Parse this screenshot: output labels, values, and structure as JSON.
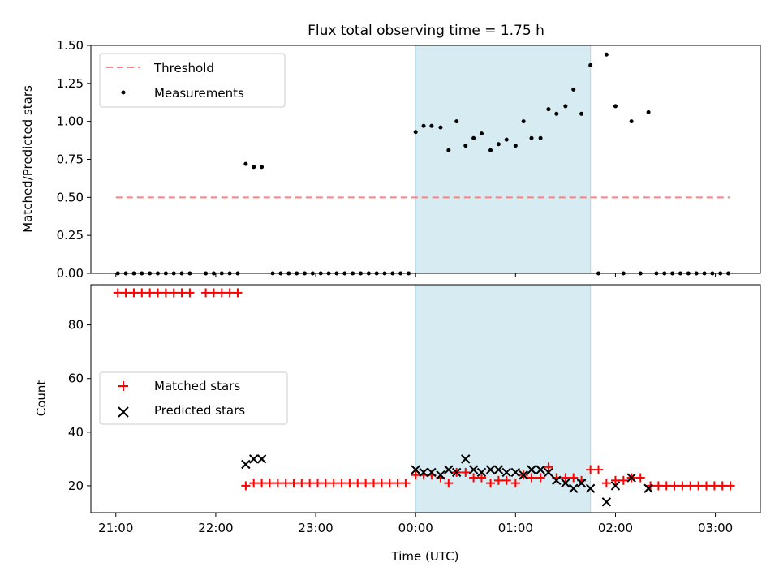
{
  "figure": {
    "title": "Flux total observing time = 1.75 h"
  },
  "chart_data": [
    {
      "type": "scatter",
      "panel": "top",
      "ylabel": "Matched/Predicted stars",
      "ylim": [
        0,
        1.5
      ],
      "yticks": [
        "0.00",
        "0.25",
        "0.50",
        "0.75",
        "1.00",
        "1.25",
        "1.50"
      ],
      "xlim_hours": [
        -3.25,
        3.45
      ],
      "legend_position": "upper-left",
      "legend": [
        "Threshold",
        "Measurements"
      ],
      "shaded_span": {
        "start": 0.0,
        "end": 1.75,
        "color": "#add8e6"
      },
      "threshold": {
        "name": "Threshold",
        "value": 0.5,
        "x_start": -3.0,
        "x_end": 3.15,
        "color": "#ff8080",
        "style": "dashed"
      },
      "series": [
        {
          "name": "Measurements",
          "color": "#000000",
          "marker": "dot",
          "points": [
            [
              -2.98,
              0
            ],
            [
              -2.9,
              0
            ],
            [
              -2.82,
              0
            ],
            [
              -2.74,
              0
            ],
            [
              -2.66,
              0
            ],
            [
              -2.58,
              0
            ],
            [
              -2.5,
              0
            ],
            [
              -2.42,
              0
            ],
            [
              -2.34,
              0
            ],
            [
              -2.26,
              0
            ],
            [
              -2.1,
              0
            ],
            [
              -2.02,
              0
            ],
            [
              -1.94,
              0
            ],
            [
              -1.86,
              0
            ],
            [
              -1.78,
              0
            ],
            [
              -1.7,
              0.72
            ],
            [
              -1.62,
              0.7
            ],
            [
              -1.54,
              0.7
            ],
            [
              -1.43,
              0
            ],
            [
              -1.35,
              0
            ],
            [
              -1.27,
              0
            ],
            [
              -1.19,
              0
            ],
            [
              -1.11,
              0
            ],
            [
              -1.03,
              0
            ],
            [
              -0.95,
              0
            ],
            [
              -0.87,
              0
            ],
            [
              -0.79,
              0
            ],
            [
              -0.71,
              0
            ],
            [
              -0.63,
              0
            ],
            [
              -0.55,
              0
            ],
            [
              -0.47,
              0
            ],
            [
              -0.39,
              0
            ],
            [
              -0.31,
              0
            ],
            [
              -0.23,
              0
            ],
            [
              -0.15,
              0
            ],
            [
              -0.07,
              0
            ],
            [
              0.0,
              0.93
            ],
            [
              0.08,
              0.97
            ],
            [
              0.16,
              0.97
            ],
            [
              0.25,
              0.96
            ],
            [
              0.33,
              0.81
            ],
            [
              0.41,
              1.0
            ],
            [
              0.5,
              0.84
            ],
            [
              0.58,
              0.89
            ],
            [
              0.66,
              0.92
            ],
            [
              0.75,
              0.81
            ],
            [
              0.83,
              0.85
            ],
            [
              0.91,
              0.88
            ],
            [
              1.0,
              0.84
            ],
            [
              1.08,
              1.0
            ],
            [
              1.16,
              0.89
            ],
            [
              1.25,
              0.89
            ],
            [
              1.33,
              1.08
            ],
            [
              1.41,
              1.05
            ],
            [
              1.5,
              1.1
            ],
            [
              1.58,
              1.21
            ],
            [
              1.66,
              1.05
            ],
            [
              1.75,
              1.37
            ],
            [
              1.83,
              0
            ],
            [
              1.91,
              1.44
            ],
            [
              2.0,
              1.1
            ],
            [
              2.08,
              0
            ],
            [
              2.16,
              1.0
            ],
            [
              2.25,
              0
            ],
            [
              2.33,
              1.06
            ],
            [
              2.41,
              0
            ],
            [
              2.49,
              0
            ],
            [
              2.57,
              0
            ],
            [
              2.65,
              0
            ],
            [
              2.73,
              0
            ],
            [
              2.81,
              0
            ],
            [
              2.89,
              0
            ],
            [
              2.97,
              0
            ],
            [
              3.05,
              0
            ],
            [
              3.13,
              0
            ]
          ]
        }
      ]
    },
    {
      "type": "scatter",
      "panel": "bottom",
      "xlabel": "Time (UTC)",
      "ylabel": "Count",
      "ylim": [
        10,
        95
      ],
      "yticks": [
        "20",
        "40",
        "60",
        "80"
      ],
      "xticks": [
        "21:00",
        "22:00",
        "23:00",
        "00:00",
        "01:00",
        "02:00",
        "03:00"
      ],
      "xlim_hours": [
        -3.25,
        3.45
      ],
      "legend_position": "center-left",
      "legend": [
        "Matched stars",
        "Predicted stars"
      ],
      "shaded_span": {
        "start": 0.0,
        "end": 1.75,
        "color": "#add8e6"
      },
      "series": [
        {
          "name": "Matched stars",
          "color": "#ff0000",
          "marker": "plus",
          "points": [
            [
              -2.98,
              92
            ],
            [
              -2.9,
              92
            ],
            [
              -2.82,
              92
            ],
            [
              -2.74,
              92
            ],
            [
              -2.66,
              92
            ],
            [
              -2.58,
              92
            ],
            [
              -2.5,
              92
            ],
            [
              -2.42,
              92
            ],
            [
              -2.34,
              92
            ],
            [
              -2.26,
              92
            ],
            [
              -2.1,
              92
            ],
            [
              -2.02,
              92
            ],
            [
              -1.94,
              92
            ],
            [
              -1.86,
              92
            ],
            [
              -1.78,
              92
            ],
            [
              -1.7,
              20
            ],
            [
              -1.62,
              21
            ],
            [
              -1.54,
              21
            ],
            [
              -1.46,
              21
            ],
            [
              -1.38,
              21
            ],
            [
              -1.3,
              21
            ],
            [
              -1.22,
              21
            ],
            [
              -1.14,
              21
            ],
            [
              -1.06,
              21
            ],
            [
              -0.98,
              21
            ],
            [
              -0.9,
              21
            ],
            [
              -0.82,
              21
            ],
            [
              -0.74,
              21
            ],
            [
              -0.66,
              21
            ],
            [
              -0.58,
              21
            ],
            [
              -0.5,
              21
            ],
            [
              -0.42,
              21
            ],
            [
              -0.34,
              21
            ],
            [
              -0.26,
              21
            ],
            [
              -0.18,
              21
            ],
            [
              -0.1,
              21
            ],
            [
              0.0,
              24
            ],
            [
              0.08,
              24
            ],
            [
              0.16,
              24
            ],
            [
              0.25,
              23
            ],
            [
              0.33,
              21
            ],
            [
              0.41,
              25
            ],
            [
              0.5,
              25
            ],
            [
              0.58,
              23
            ],
            [
              0.66,
              23
            ],
            [
              0.75,
              21
            ],
            [
              0.83,
              22
            ],
            [
              0.91,
              22
            ],
            [
              1.0,
              21
            ],
            [
              1.08,
              24
            ],
            [
              1.16,
              23
            ],
            [
              1.25,
              23
            ],
            [
              1.33,
              27
            ],
            [
              1.41,
              23
            ],
            [
              1.5,
              23
            ],
            [
              1.58,
              23
            ],
            [
              1.66,
              22
            ],
            [
              1.75,
              26
            ],
            [
              1.83,
              26
            ],
            [
              1.91,
              21
            ],
            [
              2.0,
              22
            ],
            [
              2.08,
              22
            ],
            [
              2.16,
              23
            ],
            [
              2.25,
              23
            ],
            [
              2.35,
              20
            ],
            [
              2.43,
              20
            ],
            [
              2.51,
              20
            ],
            [
              2.59,
              20
            ],
            [
              2.67,
              20
            ],
            [
              2.75,
              20
            ],
            [
              2.83,
              20
            ],
            [
              2.91,
              20
            ],
            [
              2.99,
              20
            ],
            [
              3.07,
              20
            ],
            [
              3.15,
              20
            ]
          ]
        },
        {
          "name": "Predicted stars",
          "color": "#000000",
          "marker": "x",
          "points": [
            [
              -1.7,
              28
            ],
            [
              -1.62,
              30
            ],
            [
              -1.54,
              30
            ],
            [
              0.0,
              26
            ],
            [
              0.08,
              25
            ],
            [
              0.16,
              25
            ],
            [
              0.25,
              24
            ],
            [
              0.33,
              26
            ],
            [
              0.41,
              25
            ],
            [
              0.5,
              30
            ],
            [
              0.58,
              26
            ],
            [
              0.66,
              25
            ],
            [
              0.75,
              26
            ],
            [
              0.83,
              26
            ],
            [
              0.91,
              25
            ],
            [
              1.0,
              25
            ],
            [
              1.08,
              24
            ],
            [
              1.16,
              26
            ],
            [
              1.25,
              26
            ],
            [
              1.33,
              25
            ],
            [
              1.41,
              22
            ],
            [
              1.5,
              21
            ],
            [
              1.58,
              19
            ],
            [
              1.66,
              21
            ],
            [
              1.75,
              19
            ],
            [
              1.91,
              14
            ],
            [
              2.0,
              20
            ],
            [
              2.16,
              23
            ],
            [
              2.33,
              19
            ]
          ]
        }
      ]
    }
  ]
}
